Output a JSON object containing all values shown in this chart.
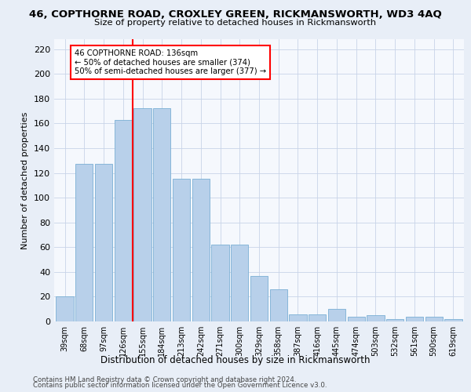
{
  "title1": "46, COPTHORNE ROAD, CROXLEY GREEN, RICKMANSWORTH, WD3 4AQ",
  "title2": "Size of property relative to detached houses in Rickmansworth",
  "xlabel": "Distribution of detached houses by size in Rickmansworth",
  "ylabel": "Number of detached properties",
  "categories": [
    "39sqm",
    "68sqm",
    "97sqm",
    "126sqm",
    "155sqm",
    "184sqm",
    "213sqm",
    "242sqm",
    "271sqm",
    "300sqm",
    "329sqm",
    "358sqm",
    "387sqm",
    "416sqm",
    "445sqm",
    "474sqm",
    "503sqm",
    "532sqm",
    "561sqm",
    "590sqm",
    "619sqm"
  ],
  "values": [
    20,
    127,
    127,
    163,
    172,
    172,
    115,
    115,
    62,
    62,
    37,
    26,
    6,
    6,
    10,
    4,
    5,
    2,
    4,
    4,
    2
  ],
  "bar_color": "#b8d0ea",
  "bar_edge_color": "#7aafd4",
  "property_line_x": 3.5,
  "annotation_text1": "46 COPTHORNE ROAD: 136sqm",
  "annotation_text2": "← 50% of detached houses are smaller (374)",
  "annotation_text3": "50% of semi-detached houses are larger (377) →",
  "annotation_box_color": "white",
  "annotation_box_edge_color": "red",
  "vline_color": "red",
  "ylim": [
    0,
    228
  ],
  "yticks": [
    0,
    20,
    40,
    60,
    80,
    100,
    120,
    140,
    160,
    180,
    200,
    220
  ],
  "footer1": "Contains HM Land Registry data © Crown copyright and database right 2024.",
  "footer2": "Contains public sector information licensed under the Open Government Licence v3.0.",
  "bg_color": "#e8eef7",
  "plot_bg_color": "#f5f8fd"
}
